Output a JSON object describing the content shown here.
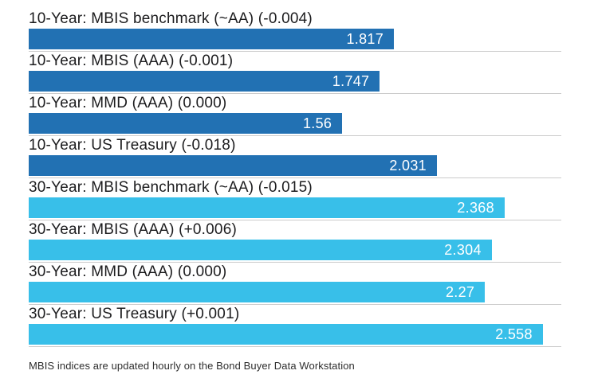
{
  "chart_data": {
    "type": "bar",
    "orientation": "horizontal",
    "axis_max": 2.65,
    "grid": false,
    "legend": false,
    "title": "",
    "footnote": "MBIS indices are updated hourly on the Bond Buyer Data Workstation",
    "colors": {
      "ten_year": "#2271b3",
      "thirty_year": "#38bfe9"
    },
    "categories": [
      "10-Year: MBIS benchmark (~AA) (-0.004)",
      "10-Year: MBIS (AAA) (-0.001)",
      "10-Year: MMD (AAA) (0.000)",
      "10-Year: US Treasury (-0.018)",
      "30-Year: MBIS benchmark (~AA) (-0.015)",
      "30-Year: MBIS (AAA) (+0.006)",
      "30-Year: MMD (AAA) (0.000)",
      "30-Year: US Treasury (+0.001)"
    ],
    "values": [
      1.817,
      1.747,
      1.56,
      2.031,
      2.368,
      2.304,
      2.27,
      2.558
    ],
    "bars": [
      {
        "label": "10-Year: MBIS benchmark (~AA) (-0.004)",
        "value": 1.817,
        "display": "1.817",
        "group": "ten_year"
      },
      {
        "label": "10-Year: MBIS (AAA) (-0.001)",
        "value": 1.747,
        "display": "1.747",
        "group": "ten_year"
      },
      {
        "label": "10-Year: MMD (AAA) (0.000)",
        "value": 1.56,
        "display": "1.56",
        "group": "ten_year"
      },
      {
        "label": "10-Year: US Treasury (-0.018)",
        "value": 2.031,
        "display": "2.031",
        "group": "ten_year"
      },
      {
        "label": "30-Year: MBIS benchmark (~AA) (-0.015)",
        "value": 2.368,
        "display": "2.368",
        "group": "thirty_year"
      },
      {
        "label": "30-Year: MBIS (AAA) (+0.006)",
        "value": 2.304,
        "display": "2.304",
        "group": "thirty_year"
      },
      {
        "label": "30-Year: MMD (AAA) (0.000)",
        "value": 2.27,
        "display": "2.27",
        "group": "thirty_year"
      },
      {
        "label": "30-Year: US Treasury (+0.001)",
        "value": 2.558,
        "display": "2.558",
        "group": "thirty_year"
      }
    ]
  }
}
